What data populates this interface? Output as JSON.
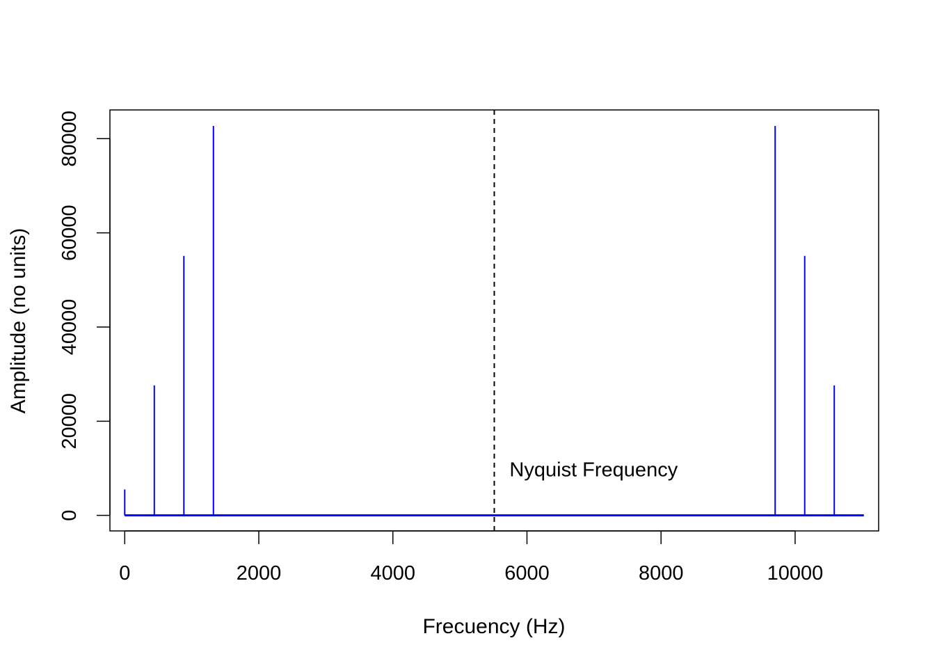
{
  "chart_data": {
    "type": "line",
    "title": "",
    "xlabel": "Frecuency (Hz)",
    "ylabel": "Amplitude (no units)",
    "xlim": [
      -221,
      11246
    ],
    "ylim": [
      -3300,
      86100
    ],
    "xticks": [
      0,
      2000,
      4000,
      6000,
      8000,
      10000
    ],
    "yticks": [
      0,
      20000,
      40000,
      60000,
      80000
    ],
    "series": [
      {
        "style": "spikes",
        "color": "#0000ff",
        "x": [
          0,
          441,
          882,
          1323,
          9702,
          10143,
          10584
        ],
        "values": [
          5500,
          27600,
          55100,
          82700,
          82700,
          55100,
          27600
        ],
        "x_range": [
          0,
          11025
        ]
      }
    ],
    "annotations": [
      {
        "type": "vline",
        "x": 5512.5,
        "style": "dashed",
        "color": "#000000"
      },
      {
        "type": "text",
        "text": "Nyquist Frequency",
        "x": 5740,
        "y": 8300
      }
    ],
    "grid": false,
    "legend": "none"
  }
}
